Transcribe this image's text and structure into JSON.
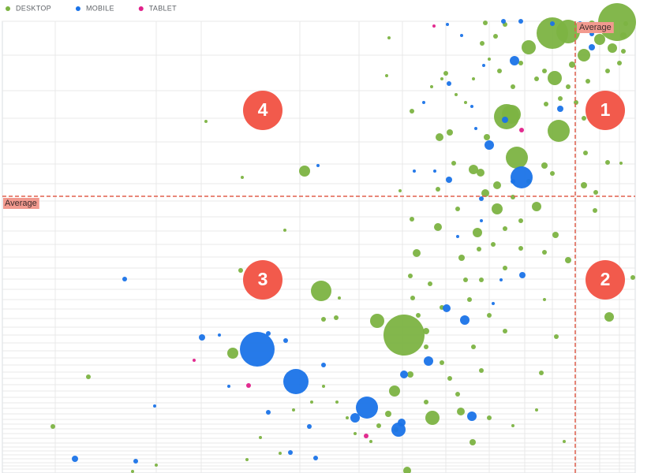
{
  "chart_data": {
    "type": "scatter",
    "xlim": [
      3,
      805
    ],
    "ylim": [
      0,
      573
    ],
    "xgrid": [
      70,
      198,
      255,
      380,
      455,
      510,
      565,
      620,
      665,
      700,
      730,
      760,
      785
    ],
    "ygrid": [
      573,
      530,
      485,
      450,
      420,
      392,
      367,
      345,
      325,
      307,
      290,
      274,
      260,
      246,
      233,
      220,
      208,
      196,
      185,
      175,
      165,
      155,
      146,
      137,
      128,
      120,
      112,
      104,
      96,
      89,
      82,
      75,
      68,
      62,
      56,
      50,
      44,
      38,
      33,
      28,
      23,
      18,
      13,
      9,
      5
    ],
    "average": {
      "label": "Average",
      "x": 729,
      "y": 351
    },
    "quadrant_labels": [
      "1",
      "2",
      "3",
      "4"
    ],
    "series": [
      {
        "name": "DESKTOP",
        "color": "#7cb342",
        "x": [
          512,
          782,
          700,
          720,
          642,
          708,
          655,
          478,
          407,
          703,
          670,
          648,
          548,
          500,
          386,
          295,
          772,
          630,
          680,
          740,
          760,
          600,
          609,
          555,
          528,
          605,
          585,
          630,
          615,
          540,
          520,
          492,
          584,
          599,
          516,
          704,
          720,
          686,
          705,
          410,
          426,
          430,
          361,
          305,
          112,
          67,
          261,
          307,
          313,
          570,
          557,
          575,
          617,
          628,
          611,
          615,
          640,
          692,
          710,
          725,
          745,
          776,
          790,
          754,
          740,
          755,
          770,
          787,
          742,
          758,
          802,
          690,
          660,
          640,
          625,
          607,
          580,
          555,
          522,
          507,
          520,
          523,
          530,
          540,
          560,
          570,
          540,
          502,
          480,
          470,
          450,
          440,
          427,
          410,
          395,
          372,
          355,
          330,
          168,
          198,
          560,
          547,
          522,
          565,
          490,
          493,
          578,
          590,
          600,
          620,
          633,
          650,
          660,
          680,
          690,
          720,
          730,
          740,
          760,
          770,
          785,
          700,
          690,
          670,
          650,
          660,
          640,
          610,
          595,
          620,
          640,
          600,
          610,
          580,
          560,
          545,
          590,
          620,
          650,
          680,
          715,
          690,
          750,
          790,
          793
        ],
        "values": [
          175,
          572,
          558,
          560,
          452,
          434,
          400,
          193,
          231,
          501,
          540,
          455,
          70,
          104,
          383,
          152,
          198,
          335,
          338,
          530,
          550,
          385,
          381,
          312,
          279,
          305,
          273,
          365,
          355,
          180,
          125,
          75,
          78,
          39,
          3,
          302,
          270,
          127,
          173,
          195,
          197,
          222,
          308,
          257,
          122,
          59,
          446,
          375,
          17,
          432,
          426,
          393,
          426,
          554,
          545,
          571,
          569,
          468,
          475,
          518,
          497,
          539,
          535,
          333,
          365,
          356,
          394,
          393,
          406,
          454,
          248,
          280,
          285,
          260,
          290,
          284,
          335,
          360,
          322,
          358,
          250,
          222,
          200,
          160,
          140,
          120,
          90,
          55,
          60,
          40,
          50,
          70,
          90,
          110,
          90,
          80,
          25,
          45,
          2,
          10,
          500,
          490,
          459,
          507,
          504,
          552,
          480,
          470,
          500,
          525,
          510,
          490,
          520,
          500,
          510,
          490,
          470,
          450,
          480,
          510,
          520,
          380,
          390,
          370,
          350,
          320,
          310,
          245,
          220,
          200,
          180,
          160,
          130,
          100,
          210,
          240,
          245,
          70,
          60,
          80,
          40,
          220,
          570,
          555,
          570
        ],
        "sizes": [
          26,
          24,
          20,
          15,
          16,
          14,
          14,
          9,
          13,
          9,
          9,
          12,
          9,
          7,
          7,
          7,
          6,
          7,
          6,
          8,
          7,
          6,
          5,
          5,
          5,
          6,
          4,
          5,
          5,
          4,
          4,
          4,
          5,
          4,
          5,
          4,
          4,
          3,
          3,
          3,
          3,
          2,
          2,
          3,
          3,
          3,
          2,
          2,
          2,
          4,
          5,
          3,
          4,
          3,
          3,
          3,
          3,
          3,
          3,
          4,
          3,
          6,
          3,
          3,
          4,
          3,
          3,
          2,
          3,
          3,
          3,
          3,
          3,
          3,
          3,
          3,
          3,
          3,
          3,
          2,
          3,
          3,
          3,
          3,
          3,
          3,
          3,
          3,
          3,
          2,
          2,
          2,
          2,
          2,
          2,
          2,
          2,
          2,
          2,
          2,
          2,
          2,
          3,
          3,
          2,
          2,
          2,
          2,
          2,
          2,
          3,
          3,
          3,
          3,
          3,
          3,
          3,
          3,
          3,
          3,
          3,
          3,
          4,
          3,
          3,
          3,
          3,
          3,
          3,
          3,
          3,
          3,
          3,
          3,
          3,
          3,
          3,
          3,
          2,
          2,
          2,
          2,
          4,
          4,
          3
        ]
      },
      {
        "name": "MOBILE",
        "color": "#1a73e8",
        "x": [
          326,
          375,
          465,
          661,
          505,
          450,
          543,
          589,
          598,
          620,
          652,
          566,
          512,
          509,
          256,
          95,
          172,
          158,
          340,
          400,
          368,
          392,
          410,
          362,
          340,
          290,
          278,
          196,
          403,
          569,
          640,
          662,
          525,
          569,
          567,
          613,
          638,
          660,
          710,
          735,
          750,
          750,
          598,
          603,
          650,
          610,
          580,
          610,
          635,
          625,
          551,
          537,
          585,
          700
        ],
        "values": [
          157,
          116,
          83,
          375,
          55,
          70,
          142,
          194,
          72,
          416,
          523,
          209,
          125,
          64,
          172,
          18,
          15,
          246,
          77,
          19,
          26,
          59,
          137,
          168,
          177,
          110,
          175,
          85,
          390,
          372,
          448,
          251,
          383,
          494,
          569,
          517,
          573,
          573,
          462,
          570,
          540,
          557,
          465,
          437,
          370,
          348,
          300,
          320,
          245,
          215,
          383,
          470,
          555,
          570
        ],
        "sizes": [
          22,
          16,
          14,
          14,
          9,
          6,
          6,
          6,
          6,
          6,
          6,
          5,
          5,
          5,
          4,
          4,
          3,
          3,
          3,
          3,
          3,
          3,
          3,
          3,
          3,
          2,
          2,
          2,
          2,
          4,
          4,
          4,
          2,
          3,
          2,
          2,
          3,
          3,
          4,
          3,
          4,
          3,
          2,
          2,
          3,
          3,
          2,
          2,
          2,
          2,
          2,
          2,
          2,
          3
        ]
      },
      {
        "name": "TABLET",
        "color": "#e0218a",
        "x": [
          661,
          315,
          464,
          246,
          550
        ],
        "values": [
          435,
          111,
          47,
          143,
          567
        ],
        "sizes": [
          3,
          3,
          3,
          2,
          2
        ]
      }
    ]
  }
}
